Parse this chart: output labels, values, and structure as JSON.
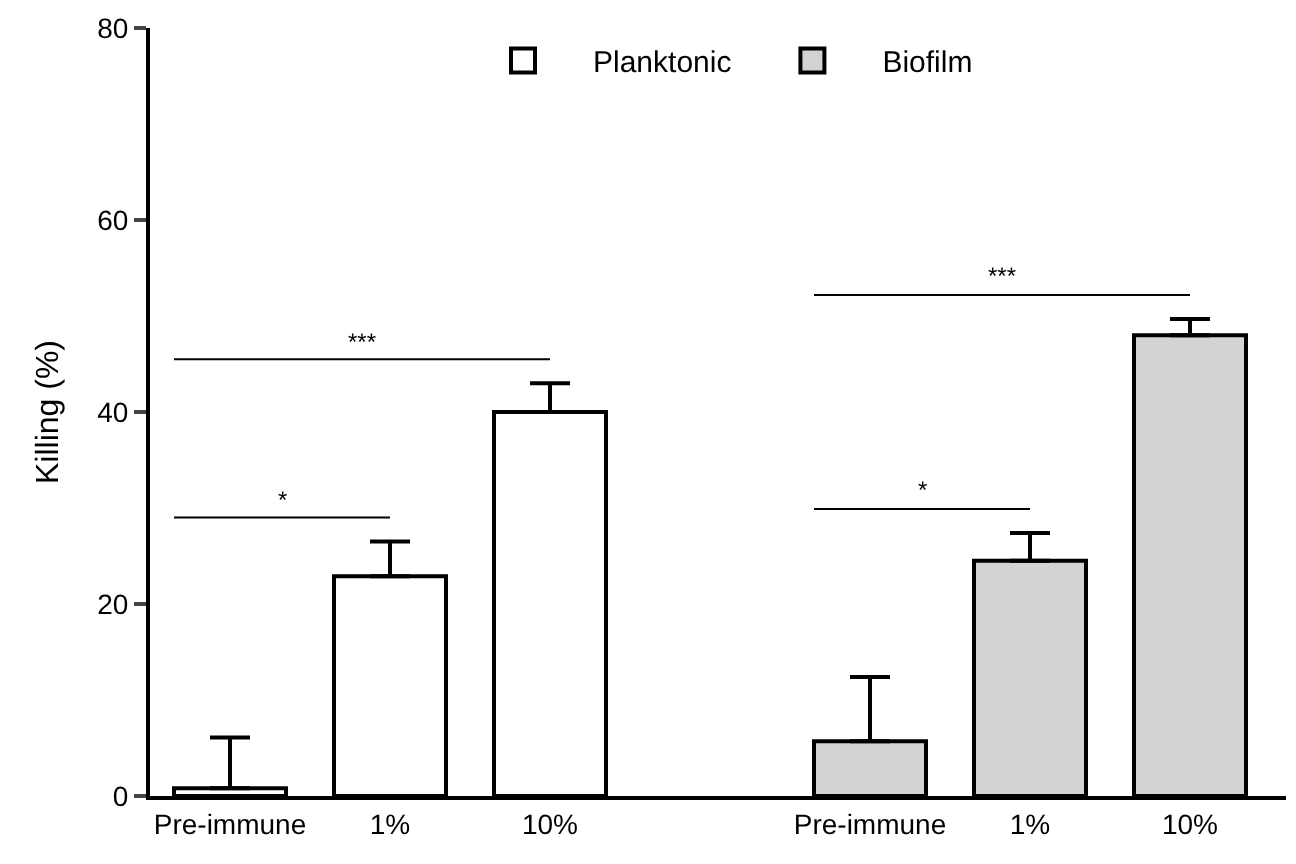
{
  "chart_data": {
    "type": "bar",
    "ylabel": "Killing (%)",
    "categories": [
      "Pre-immune",
      "1%",
      "10%",
      null,
      "Pre-immune",
      "1%",
      "10%"
    ],
    "series": [
      {
        "name": "Planktonic",
        "color": "#ffffff",
        "values": [
          0.8,
          22.9,
          40.0,
          null,
          null,
          null,
          null
        ],
        "errors": [
          [
            0.8,
            6.1
          ],
          [
            22.9,
            26.5
          ],
          [
            40.0,
            43.0
          ],
          null,
          null,
          null,
          null
        ]
      },
      {
        "name": "Biofilm",
        "color": "#d3d3d3",
        "values": [
          null,
          null,
          null,
          null,
          5.7,
          24.5,
          48.0
        ],
        "errors": [
          null,
          null,
          null,
          null,
          [
            5.7,
            12.4
          ],
          [
            24.5,
            27.4
          ],
          [
            48.0,
            49.7
          ]
        ]
      }
    ],
    "annotations": [
      "*",
      "***",
      "*",
      "***"
    ],
    "ylim": [
      0,
      80
    ],
    "yticks": [
      0,
      20,
      40,
      60,
      80
    ],
    "legend": "top"
  }
}
